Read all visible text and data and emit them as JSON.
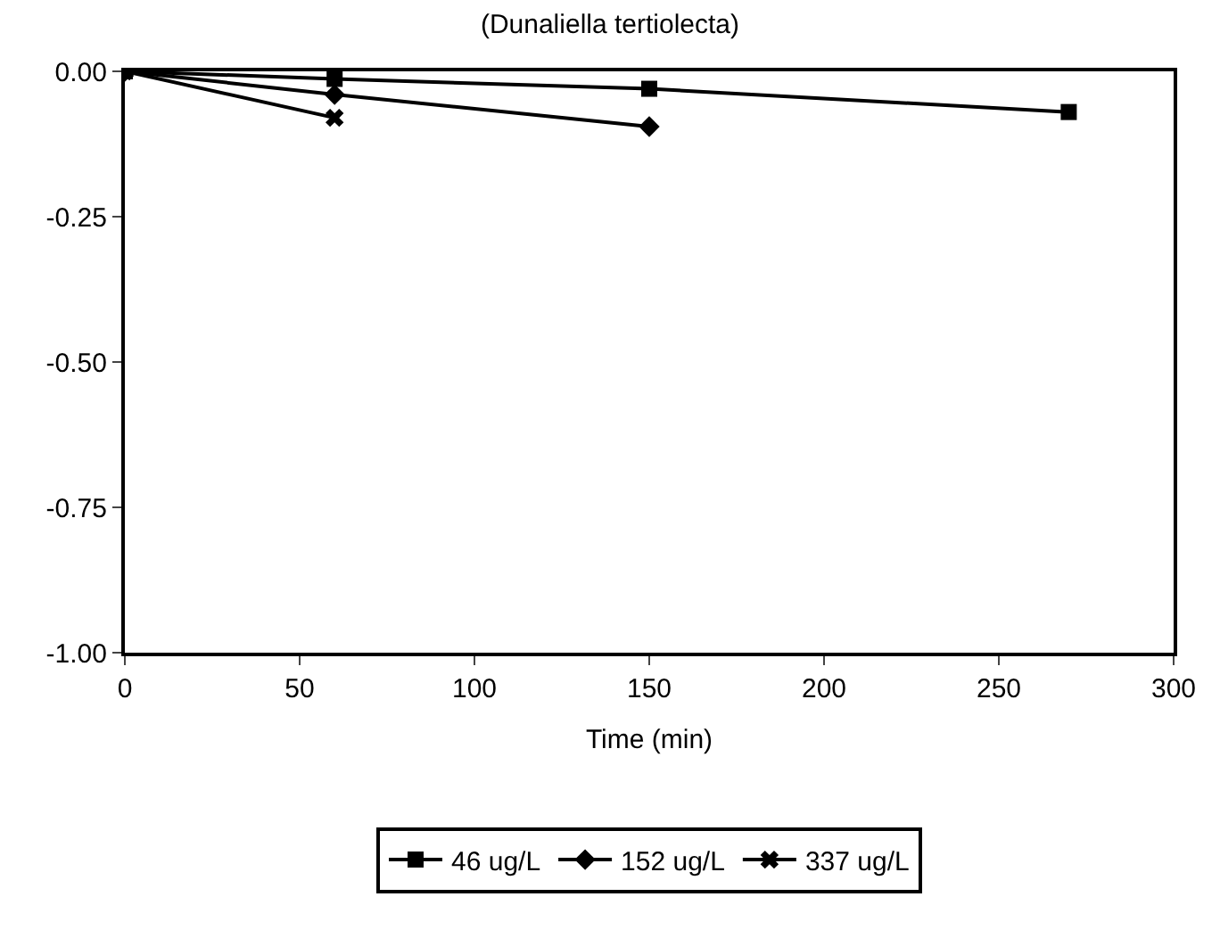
{
  "chart_data": {
    "type": "line",
    "title": "(Dunaliella tertiolecta)",
    "xlabel": "Time (min)",
    "x": [
      0,
      60,
      150,
      270
    ],
    "series": [
      {
        "name": "46 ug/L",
        "color": "#000000",
        "marker": "square",
        "values": [
          0,
          -0.013,
          -0.03,
          -0.07
        ]
      },
      {
        "name": "152 ug/L",
        "color": "#000000",
        "marker": "diamond",
        "values": [
          0,
          -0.04,
          -0.095,
          null
        ]
      },
      {
        "name": "337 ug/L",
        "color": "#000000",
        "marker": "cross",
        "values": [
          0,
          -0.08,
          null,
          null
        ]
      }
    ],
    "xlim": [
      0,
      300
    ],
    "xticks": [
      0,
      50,
      100,
      150,
      200,
      250,
      300
    ],
    "ylim": [
      -1.0,
      0.0
    ],
    "yticks": [
      {
        "value": -1.0,
        "label": "-1.00"
      },
      {
        "value": -0.75,
        "label": "-0.75"
      },
      {
        "value": -0.5,
        "label": "-0.50"
      },
      {
        "value": -0.25,
        "label": "-0.25"
      },
      {
        "value": 0,
        "label": "0.00"
      }
    ],
    "legend": "bottom",
    "line_style": "solid"
  }
}
